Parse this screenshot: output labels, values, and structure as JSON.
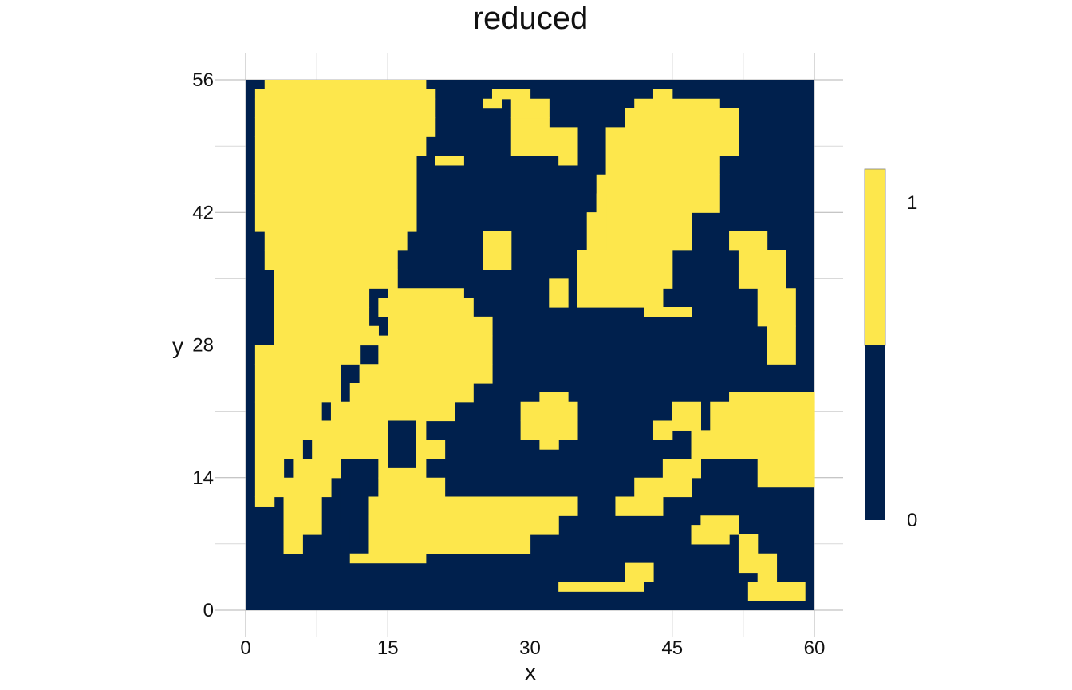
{
  "chart_data": {
    "type": "heatmap",
    "title": "reduced",
    "xlabel": "x",
    "ylabel": "y",
    "xlim": [
      0,
      60
    ],
    "ylim": [
      0,
      56
    ],
    "x_ticks": [
      "0",
      "15",
      "30",
      "45",
      "60"
    ],
    "y_ticks": [
      "0",
      "14",
      "28",
      "42",
      "56"
    ],
    "legend": {
      "position": "right",
      "labels": [
        "1",
        "0"
      ]
    },
    "colors": {
      "value_1": "#FDE74C",
      "value_0": "#00204D",
      "grid": "#B3B3B3"
    },
    "grid": true,
    "cell_size": 1,
    "values_description": "binary grid, 60 columns x 56 rows; each feature is a list of [x0, x1, y0, y1] data-unit rectangles with value 1 (yellow); all other cells 0",
    "value_1_regions": [
      [
        [
          2,
          19,
          55,
          56
        ],
        [
          1,
          20,
          54,
          55
        ],
        [
          1,
          20,
          52,
          54
        ],
        [
          1,
          20,
          50,
          52
        ],
        [
          1,
          19,
          48,
          50
        ],
        [
          1,
          18,
          44,
          48
        ],
        [
          1,
          18,
          40,
          44
        ],
        [
          2,
          17,
          38,
          40
        ],
        [
          2,
          16,
          36,
          38
        ],
        [
          3,
          16,
          34,
          36
        ],
        [
          3,
          13,
          32,
          34
        ],
        [
          3,
          13,
          30,
          32
        ],
        [
          3,
          14,
          28,
          30
        ],
        [
          1,
          12,
          26,
          28
        ],
        [
          1,
          10,
          22,
          26
        ],
        [
          1,
          8,
          18,
          22
        ],
        [
          1,
          6,
          16,
          18
        ],
        [
          1,
          4,
          12,
          16
        ],
        [
          1,
          3,
          11,
          12
        ]
      ],
      [
        [
          15,
          23,
          33,
          34
        ],
        [
          14,
          24,
          31,
          33
        ],
        [
          15,
          26,
          29,
          31
        ],
        [
          14,
          26,
          26,
          29
        ],
        [
          12,
          26,
          24,
          26
        ],
        [
          11,
          24,
          22,
          24
        ],
        [
          9,
          22,
          20,
          22
        ],
        [
          8,
          19,
          18,
          20
        ],
        [
          7,
          15,
          16,
          18
        ],
        [
          5,
          10,
          14,
          16
        ],
        [
          4,
          9,
          12,
          14
        ],
        [
          4,
          8,
          8,
          12
        ],
        [
          4,
          6,
          6,
          8
        ],
        [
          13,
          21,
          16,
          18
        ],
        [
          14,
          19,
          14,
          16
        ],
        [
          14,
          21,
          12,
          14
        ],
        [
          13,
          35,
          10,
          12
        ],
        [
          12,
          33,
          8,
          10
        ],
        [
          11,
          30,
          6,
          8
        ],
        [
          11,
          19,
          5,
          6
        ]
      ],
      [
        [
          43,
          45,
          54,
          55
        ],
        [
          41,
          50,
          53,
          54
        ],
        [
          40,
          52,
          51,
          53
        ],
        [
          38,
          52,
          48,
          51
        ],
        [
          38,
          50,
          46,
          48
        ],
        [
          37,
          50,
          42,
          46
        ],
        [
          36,
          47,
          38,
          42
        ],
        [
          35,
          45,
          34,
          38
        ],
        [
          35,
          44,
          32,
          34
        ],
        [
          42,
          47,
          31,
          32
        ],
        [
          51,
          55,
          38,
          40
        ],
        [
          52,
          57,
          34,
          38
        ],
        [
          54,
          58,
          30,
          34
        ],
        [
          55,
          58,
          26,
          30
        ]
      ],
      [
        [
          51,
          60,
          22,
          23
        ],
        [
          49,
          60,
          19,
          22
        ],
        [
          47,
          60,
          16,
          19
        ],
        [
          54,
          60,
          13,
          16
        ],
        [
          44,
          48,
          14,
          16
        ],
        [
          41,
          47,
          12,
          14
        ],
        [
          39,
          44,
          10,
          12
        ]
      ],
      [
        [
          31,
          34,
          22,
          23
        ],
        [
          29,
          35,
          20,
          22
        ],
        [
          29,
          35,
          18,
          20
        ],
        [
          31,
          33,
          17,
          18
        ],
        [
          25,
          28,
          36,
          40
        ],
        [
          32,
          34,
          32,
          35
        ],
        [
          36,
          38,
          38,
          42
        ],
        [
          37,
          38,
          42,
          44
        ],
        [
          28,
          32,
          48,
          52
        ],
        [
          32,
          35,
          48,
          51
        ],
        [
          33,
          35,
          47,
          48
        ],
        [
          52,
          54,
          4,
          8
        ],
        [
          54,
          56,
          3,
          6
        ],
        [
          53,
          59,
          1,
          3
        ],
        [
          48,
          52,
          8,
          10
        ],
        [
          45,
          48,
          19,
          22
        ],
        [
          43,
          45,
          18,
          20
        ],
        [
          33,
          42,
          2,
          3
        ],
        [
          40,
          43,
          3,
          5
        ],
        [
          47,
          51,
          7,
          9
        ],
        [
          26,
          30,
          54,
          55
        ],
        [
          28,
          32,
          52,
          54
        ],
        [
          25,
          27,
          53,
          54
        ],
        [
          20,
          23,
          47,
          48
        ]
      ]
    ],
    "value_0_holes": [
      [
        10,
        13,
        6,
        13
      ],
      [
        15,
        18,
        15,
        20
      ],
      [
        9,
        11,
        7,
        9
      ]
    ]
  }
}
